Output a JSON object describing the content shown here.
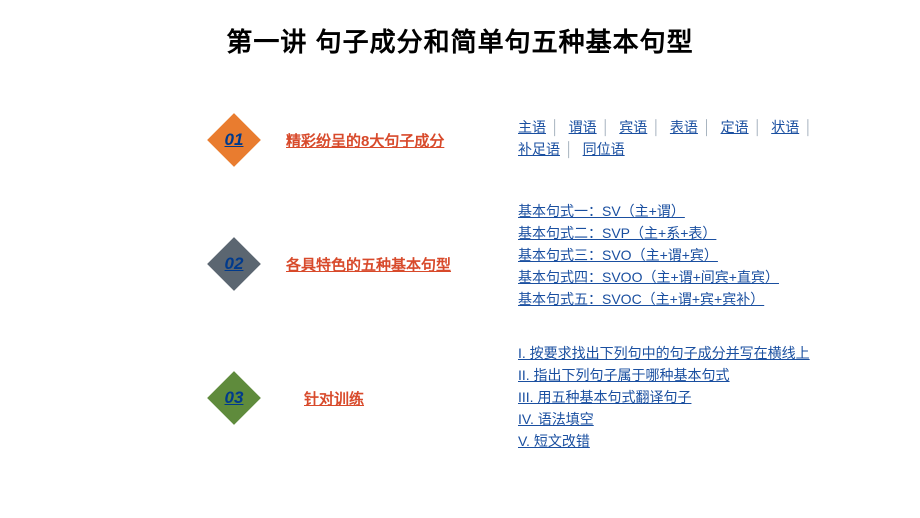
{
  "title": "第一讲 句子成分和简单句五种基本句型",
  "sections": [
    {
      "num": "01",
      "color": "orange",
      "heading": "精彩纷呈的8大句子成分",
      "links_inline": [
        "主语",
        "谓语",
        "宾语",
        "表语",
        "定语",
        "状语",
        "补足语",
        "同位语"
      ]
    },
    {
      "num": "02",
      "color": "gray",
      "heading": "各具特色的五种基本句型",
      "links_block": [
        "基本句式一：SV（主+谓）",
        "基本句式二：SVP（主+系+表）",
        "基本句式三：SVO（主+谓+宾）",
        "基本句式四：SVOO（主+谓+间宾+直宾）",
        "基本句式五：SVOC（主+谓+宾+宾补）"
      ]
    },
    {
      "num": "03",
      "color": "green",
      "heading": "针对训练",
      "links_block": [
        "I. 按要求找出下列句中的句子成分并写在横线上",
        "II. 指出下列句子属于哪种基本句式",
        "III. 用五种基本句式翻译句子",
        "IV. 语法填空",
        "V. 短文改错"
      ]
    }
  ]
}
